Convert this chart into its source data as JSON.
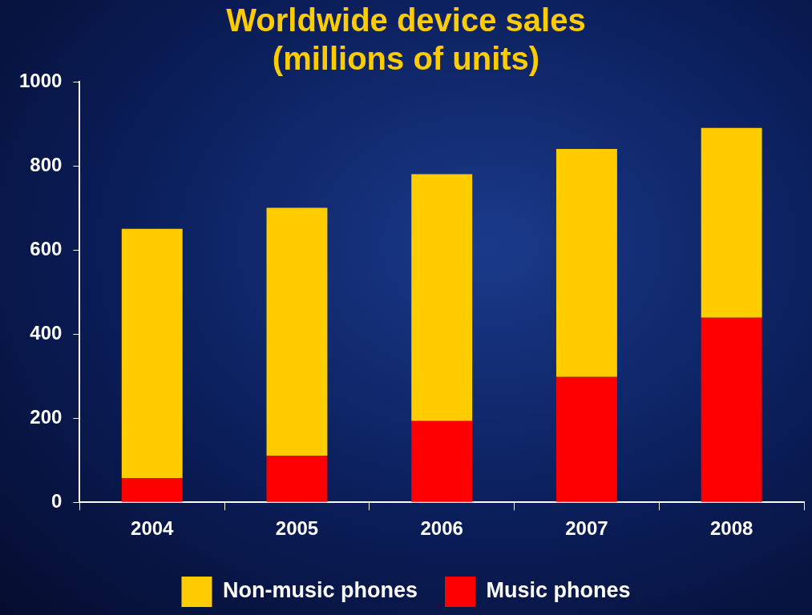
{
  "chart_data": {
    "type": "bar",
    "title": [
      "Worldwide device sales",
      "(millions of units)"
    ],
    "categories": [
      "2004",
      "2005",
      "2006",
      "2007",
      "2008"
    ],
    "series": [
      {
        "name": "Music phones",
        "color": "#ff0000",
        "values": [
          57,
          111,
          193,
          298,
          439
        ]
      },
      {
        "name": "Non-music phones",
        "color": "#ffcc00",
        "values": [
          593,
          589,
          587,
          542,
          451
        ]
      }
    ],
    "stacked": true,
    "ylim": [
      0,
      1000
    ],
    "yticks": [
      0,
      200,
      400,
      600,
      800,
      1000
    ],
    "grid": false,
    "legend": "bottom"
  }
}
